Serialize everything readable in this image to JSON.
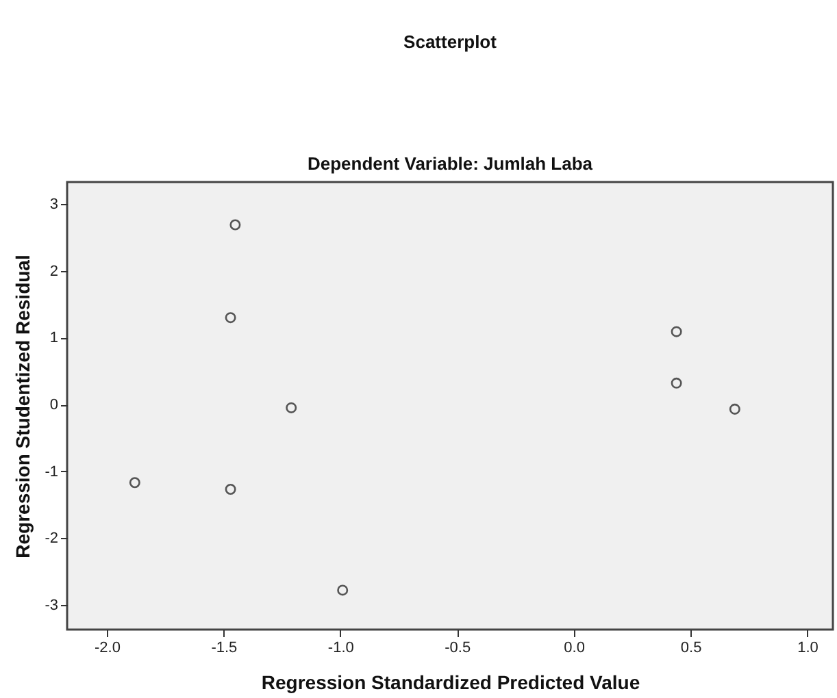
{
  "chart_data": {
    "type": "scatter",
    "title": "Scatterplot",
    "subtitle": "Dependent Variable: Jumlah Laba",
    "xlabel": "Regression Standardized Predicted Value",
    "ylabel": "Regression Studentized Residual",
    "x": [
      -1.45,
      -1.47,
      -1.21,
      -1.88,
      -1.47,
      -0.99,
      0.44,
      0.44,
      0.69
    ],
    "values": [
      2.69,
      1.3,
      -0.05,
      -1.17,
      -1.27,
      -2.78,
      1.09,
      0.32,
      -0.07
    ],
    "color": "#555555",
    "marker": "circle",
    "grid": false,
    "xlim": [
      -2.17,
      1.11
    ],
    "xticks": [
      {
        "value": -2,
        "label": "-2.0"
      },
      {
        "value": -1.5,
        "label": "-1.5"
      },
      {
        "value": -1,
        "label": "-1.0"
      },
      {
        "value": -0.5,
        "label": "-0.5"
      },
      {
        "value": 0,
        "label": "0.0"
      },
      {
        "value": 0.5,
        "label": "0.5"
      },
      {
        "value": 1,
        "label": "1.0"
      }
    ],
    "ylim": [
      -3.37,
      3.33
    ],
    "yticks": [
      -3,
      -2,
      -1,
      0,
      1,
      2,
      3
    ]
  }
}
